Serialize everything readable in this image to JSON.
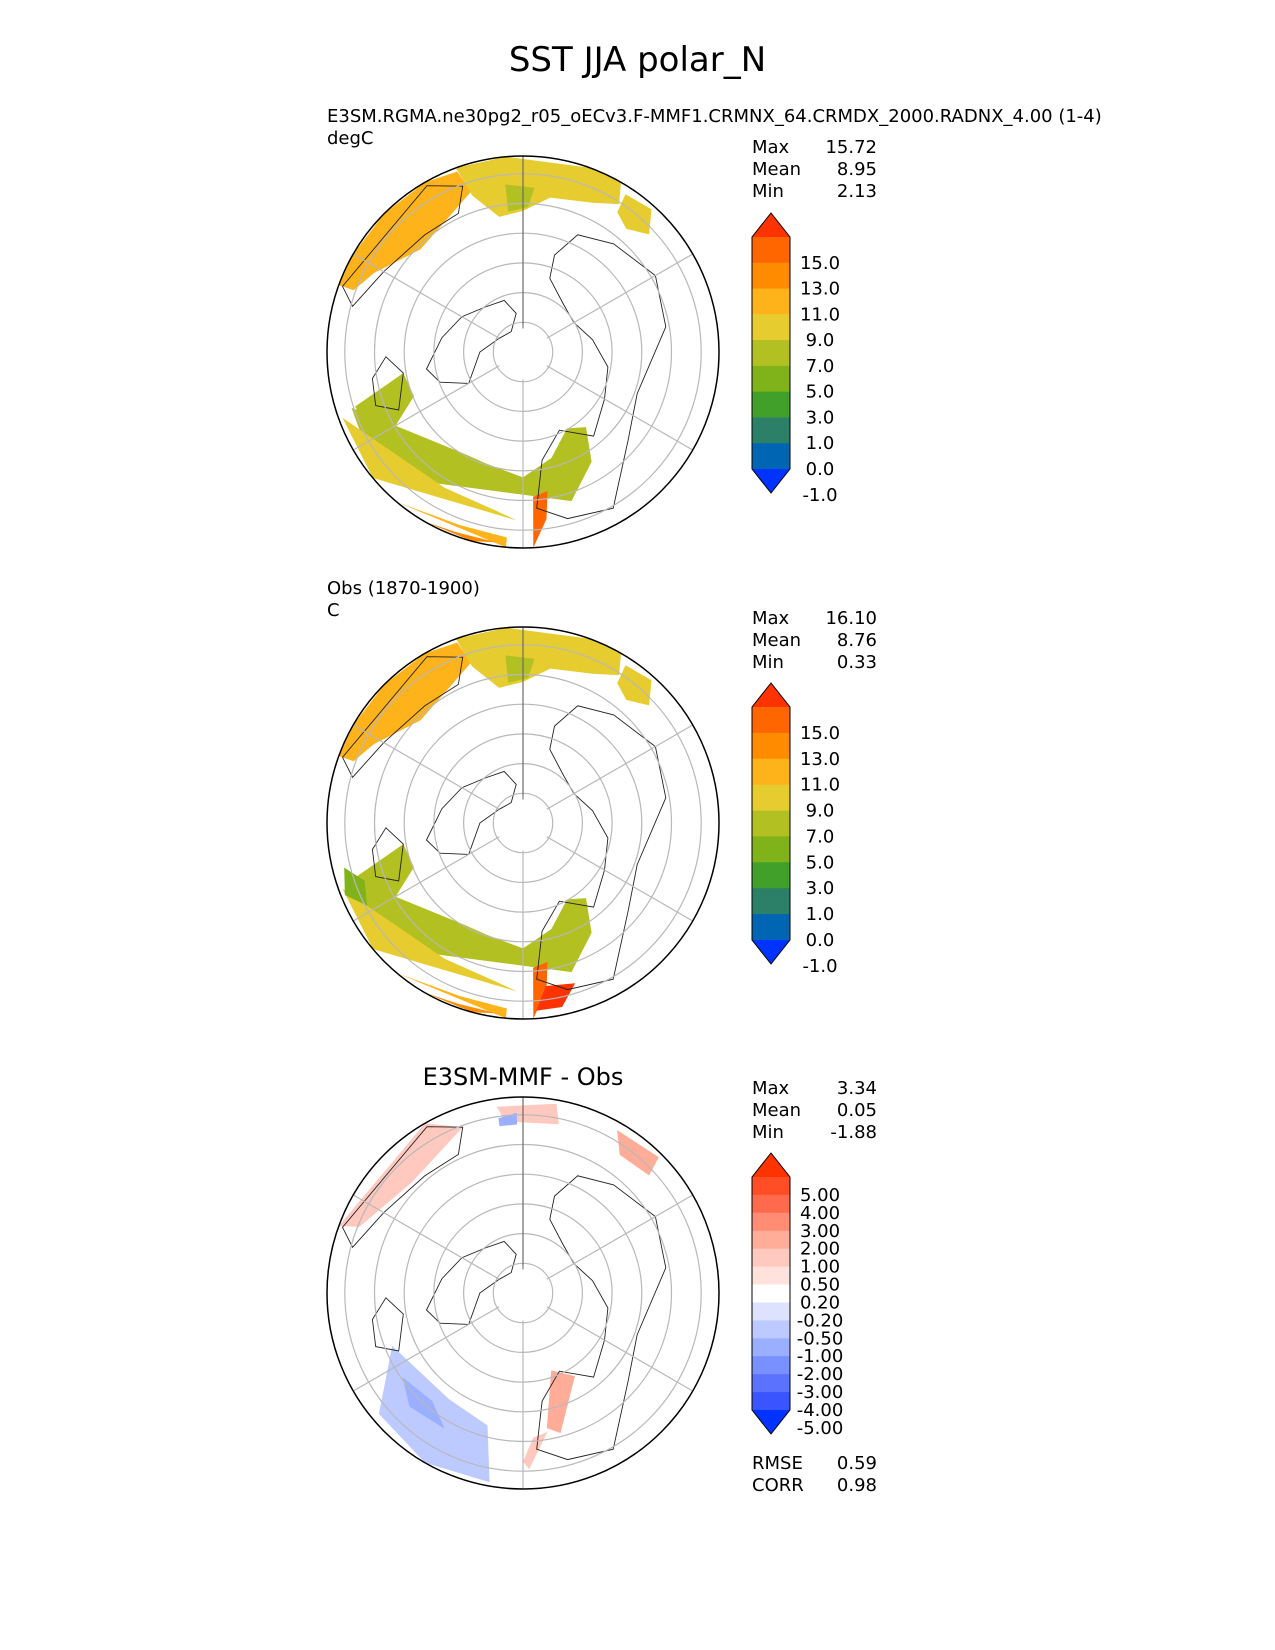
{
  "title": "SST JJA polar_N",
  "panels": [
    {
      "id": "test",
      "label_line1": "E3SM.RGMA.ne30pg2_r05_oECv3.F-MMF1.CRMNX_64.CRMDX_2000.RADNX_4.00 (1-4)",
      "label_line2": "degC",
      "stats": [
        {
          "name": "Max",
          "value": "15.72"
        },
        {
          "name": "Mean",
          "value": "8.95"
        },
        {
          "name": "Min",
          "value": "2.13"
        }
      ]
    },
    {
      "id": "ref",
      "label_line1": "Obs (1870-1900)",
      "label_line2": "C",
      "stats": [
        {
          "name": "Max",
          "value": "16.10"
        },
        {
          "name": "Mean",
          "value": "8.76"
        },
        {
          "name": "Min",
          "value": "0.33"
        }
      ]
    },
    {
      "id": "diff",
      "title": "E3SM-MMF - Obs",
      "stats": [
        {
          "name": "Max",
          "value": "3.34"
        },
        {
          "name": "Mean",
          "value": "0.05"
        },
        {
          "name": "Min",
          "value": "-1.88"
        }
      ],
      "metrics": [
        {
          "name": "RMSE",
          "value": "0.59"
        },
        {
          "name": "CORR",
          "value": "0.98"
        }
      ]
    }
  ],
  "chart_data": [
    {
      "type": "heatmap",
      "projection": "north-polar-stereographic",
      "title": "E3SM.RGMA.ne30pg2_r05_oECv3.F-MMF1.CRMNX_64.CRMDX_2000.RADNX_4.00 (1-4)",
      "units": "degC",
      "colorbar_ticks": [
        "15.0",
        "13.0",
        "11.0",
        "9.0",
        "7.0",
        "5.0",
        "3.0",
        "1.0",
        "0.0",
        "-1.0"
      ],
      "colors": [
        "#ff3300",
        "#ff6600",
        "#ff8c00",
        "#ffb31a",
        "#e6cc2e",
        "#b3c022",
        "#80b319",
        "#40a029",
        "#2d8068",
        "#0066b3",
        "#0033ff"
      ],
      "max": 15.72,
      "mean": 8.95,
      "min": 2.13
    },
    {
      "type": "heatmap",
      "projection": "north-polar-stereographic",
      "title": "Obs (1870-1900)",
      "units": "C",
      "colorbar_ticks": [
        "15.0",
        "13.0",
        "11.0",
        "9.0",
        "7.0",
        "5.0",
        "3.0",
        "1.0",
        "0.0",
        "-1.0"
      ],
      "colors": [
        "#ff3300",
        "#ff6600",
        "#ff8c00",
        "#ffb31a",
        "#e6cc2e",
        "#b3c022",
        "#80b319",
        "#40a029",
        "#2d8068",
        "#0066b3",
        "#0033ff"
      ],
      "max": 16.1,
      "mean": 8.76,
      "min": 0.33
    },
    {
      "type": "heatmap",
      "projection": "north-polar-stereographic",
      "title": "E3SM-MMF - Obs",
      "colorbar_ticks": [
        "5.00",
        "4.00",
        "3.00",
        "2.00",
        "1.00",
        "0.50",
        "0.20",
        "-0.20",
        "-0.50",
        "-1.00",
        "-2.00",
        "-3.00",
        "-4.00",
        "-5.00"
      ],
      "colors": [
        "#ff3300",
        "#ff4d26",
        "#ff6a4d",
        "#ff8c73",
        "#ffad99",
        "#ffc9bf",
        "#ffe2dc",
        "#ffffff",
        "#dde3ff",
        "#bccaff",
        "#9aafff",
        "#7990ff",
        "#5a72ff",
        "#3a55ff",
        "#0033ff"
      ],
      "max": 3.34,
      "mean": 0.05,
      "min": -1.88,
      "rmse": 0.59,
      "corr": 0.98
    }
  ]
}
